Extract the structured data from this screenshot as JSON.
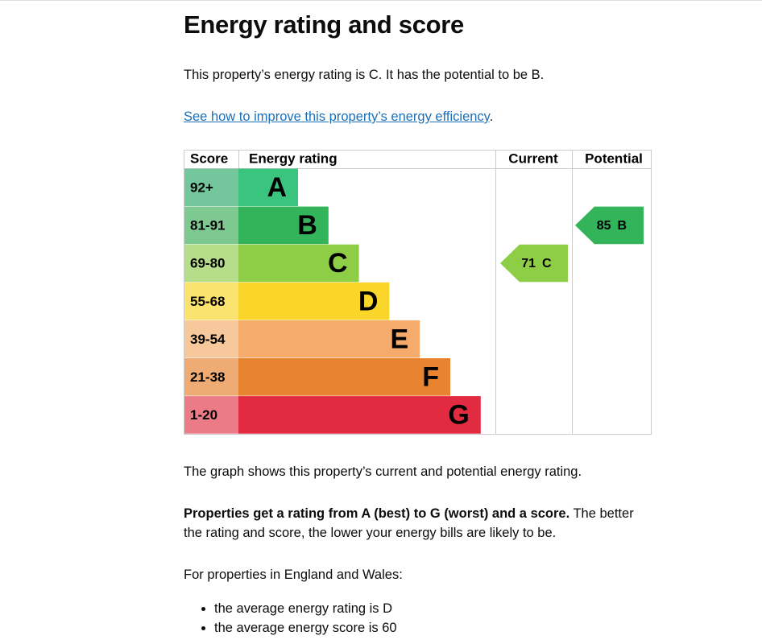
{
  "heading": "Energy rating and score",
  "intro": "This property’s energy rating is C. It has the potential to be B.",
  "link": {
    "text": "See how to improve this property’s energy efficiency",
    "suffix": "."
  },
  "graph": {
    "headers": {
      "score": "Score",
      "rating": "Energy rating",
      "current": "Current",
      "potential": "Potential"
    },
    "bands": [
      {
        "score": "92+",
        "letter": "A",
        "color": "#3ac47e",
        "score_color": "#74c69d"
      },
      {
        "score": "81-91",
        "letter": "B",
        "color": "#33b45b",
        "score_color": "#7ec892"
      },
      {
        "score": "69-80",
        "letter": "C",
        "color": "#8dce46",
        "score_color": "#b6dd8a"
      },
      {
        "score": "55-68",
        "letter": "D",
        "color": "#fad52a",
        "score_color": "#fbe36f"
      },
      {
        "score": "39-54",
        "letter": "E",
        "color": "#f4ab6b",
        "score_color": "#f6c89c"
      },
      {
        "score": "21-38",
        "letter": "F",
        "color": "#e8832f",
        "score_color": "#eeab74"
      },
      {
        "score": "1-20",
        "letter": "G",
        "color": "#e22b40",
        "score_color": "#ec7b88"
      }
    ],
    "current": {
      "score": 71,
      "letter": "C"
    },
    "potential": {
      "score": 85,
      "letter": "B"
    }
  },
  "graph_note": "The graph shows this property’s current and potential energy rating.",
  "rating_note": {
    "bold": "Properties get a rating from A (best) to G (worst) and a score.",
    "rest": " The better the rating and score, the lower your energy bills are likely to be."
  },
  "average_intro": "For properties in England and Wales:",
  "averages": [
    "the average energy rating is D",
    "the average energy score is 60"
  ]
}
